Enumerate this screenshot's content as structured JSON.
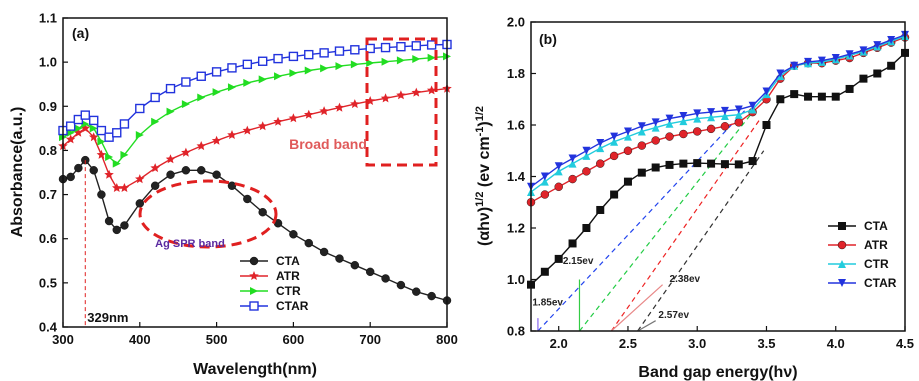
{
  "chart_data": [
    {
      "type": "line",
      "panel_label": "(a)",
      "xlabel": "Wavelength(nm)",
      "ylabel": "Absorbance(a.u.)",
      "xlim": [
        300,
        800
      ],
      "ylim": [
        0.4,
        1.1
      ],
      "xticks": [
        "300",
        "400",
        "500",
        "600",
        "700",
        "800"
      ],
      "yticks": [
        "0.4",
        "0.5",
        "0.6",
        "0.7",
        "0.8",
        "0.9",
        "1.0",
        "1.1"
      ],
      "grid": false,
      "legend_position": "bottom-right",
      "series": [
        {
          "name": "CTA",
          "color": "#222222",
          "marker": "sphere",
          "x": [
            300,
            310,
            320,
            329,
            340,
            350,
            360,
            370,
            380,
            400,
            420,
            440,
            460,
            480,
            500,
            520,
            540,
            560,
            580,
            600,
            620,
            640,
            660,
            680,
            700,
            720,
            740,
            760,
            780,
            800
          ],
          "y": [
            0.735,
            0.74,
            0.76,
            0.778,
            0.755,
            0.7,
            0.64,
            0.62,
            0.63,
            0.68,
            0.72,
            0.745,
            0.755,
            0.755,
            0.745,
            0.72,
            0.69,
            0.66,
            0.635,
            0.61,
            0.59,
            0.57,
            0.555,
            0.54,
            0.525,
            0.51,
            0.495,
            0.48,
            0.47,
            0.46
          ]
        },
        {
          "name": "ATR",
          "color": "#e0242a",
          "marker": "star",
          "x": [
            300,
            310,
            320,
            329,
            340,
            350,
            360,
            370,
            380,
            400,
            420,
            440,
            460,
            480,
            500,
            520,
            540,
            560,
            580,
            600,
            620,
            640,
            660,
            680,
            700,
            720,
            740,
            760,
            780,
            800
          ],
          "y": [
            0.81,
            0.825,
            0.84,
            0.85,
            0.83,
            0.79,
            0.745,
            0.715,
            0.715,
            0.735,
            0.76,
            0.78,
            0.795,
            0.81,
            0.822,
            0.835,
            0.845,
            0.855,
            0.865,
            0.873,
            0.881,
            0.889,
            0.897,
            0.905,
            0.912,
            0.918,
            0.925,
            0.931,
            0.936,
            0.94
          ]
        },
        {
          "name": "CTR",
          "color": "#22dd22",
          "marker": "triangle-right",
          "x": [
            300,
            310,
            320,
            329,
            340,
            350,
            360,
            370,
            380,
            400,
            420,
            440,
            460,
            480,
            500,
            520,
            540,
            560,
            580,
            600,
            620,
            640,
            660,
            680,
            700,
            720,
            740,
            760,
            780,
            800
          ],
          "y": [
            0.83,
            0.84,
            0.85,
            0.86,
            0.85,
            0.82,
            0.785,
            0.77,
            0.79,
            0.835,
            0.865,
            0.888,
            0.905,
            0.92,
            0.932,
            0.943,
            0.953,
            0.961,
            0.968,
            0.975,
            0.981,
            0.986,
            0.991,
            0.995,
            0.998,
            1.001,
            1.004,
            1.007,
            1.01,
            1.013
          ]
        },
        {
          "name": "CTAR",
          "color": "#2233dd",
          "marker": "square-open",
          "x": [
            300,
            310,
            320,
            329,
            340,
            350,
            360,
            370,
            380,
            400,
            420,
            440,
            460,
            480,
            500,
            520,
            540,
            560,
            580,
            600,
            620,
            640,
            660,
            680,
            700,
            720,
            740,
            760,
            780,
            800
          ],
          "y": [
            0.845,
            0.855,
            0.87,
            0.88,
            0.868,
            0.845,
            0.83,
            0.84,
            0.86,
            0.895,
            0.92,
            0.94,
            0.955,
            0.968,
            0.978,
            0.987,
            0.995,
            1.002,
            1.008,
            1.013,
            1.017,
            1.021,
            1.025,
            1.028,
            1.031,
            1.033,
            1.035,
            1.037,
            1.039,
            1.04
          ]
        }
      ],
      "annotations": {
        "peak_label": "329nm",
        "peak_x": 329,
        "broad_band": "Broad band",
        "spr_band": "Ag SPR band"
      }
    },
    {
      "type": "line",
      "panel_label": "(b)",
      "xlabel": "Band gap energy(hν)",
      "ylabel": "(αhν)1/2 (ev cm-1)1/2",
      "ylabel_parts": {
        "a": "(αhν)",
        "b": "1/2",
        "c": " (ev cm",
        "d": "-1",
        "e": ")",
        "f": "1/2"
      },
      "xlim": [
        1.8,
        4.5
      ],
      "ylim": [
        0.8,
        2.0
      ],
      "xticks": [
        "2.0",
        "2.5",
        "3.0",
        "3.5",
        "4.0",
        "4.5"
      ],
      "yticks": [
        "0.8",
        "1.0",
        "1.2",
        "1.4",
        "1.6",
        "1.8",
        "2.0"
      ],
      "grid": false,
      "legend_position": "center-right",
      "series": [
        {
          "name": "CTA",
          "color": "#111111",
          "marker": "square",
          "x": [
            1.8,
            1.9,
            2.0,
            2.1,
            2.2,
            2.3,
            2.4,
            2.5,
            2.6,
            2.7,
            2.8,
            2.9,
            3.0,
            3.1,
            3.2,
            3.3,
            3.4,
            3.5,
            3.6,
            3.7,
            3.8,
            3.9,
            4.0,
            4.1,
            4.2,
            4.3,
            4.4,
            4.5
          ],
          "y": [
            0.98,
            1.03,
            1.08,
            1.14,
            1.2,
            1.27,
            1.33,
            1.38,
            1.415,
            1.435,
            1.445,
            1.45,
            1.452,
            1.45,
            1.448,
            1.447,
            1.46,
            1.6,
            1.7,
            1.72,
            1.71,
            1.71,
            1.71,
            1.74,
            1.78,
            1.8,
            1.83,
            1.88
          ]
        },
        {
          "name": "ATR",
          "color": "#e0242a",
          "marker": "circle",
          "x": [
            1.8,
            1.9,
            2.0,
            2.1,
            2.2,
            2.3,
            2.4,
            2.5,
            2.6,
            2.7,
            2.8,
            2.9,
            3.0,
            3.1,
            3.2,
            3.3,
            3.4,
            3.5,
            3.6,
            3.7,
            3.8,
            3.9,
            4.0,
            4.1,
            4.2,
            4.3,
            4.4,
            4.5
          ],
          "y": [
            1.3,
            1.33,
            1.36,
            1.39,
            1.42,
            1.45,
            1.48,
            1.5,
            1.52,
            1.54,
            1.555,
            1.565,
            1.575,
            1.585,
            1.595,
            1.61,
            1.65,
            1.7,
            1.78,
            1.83,
            1.84,
            1.84,
            1.85,
            1.86,
            1.88,
            1.9,
            1.92,
            1.94
          ]
        },
        {
          "name": "CTR",
          "color": "#22ccdd",
          "marker": "triangle-up",
          "x": [
            1.8,
            1.9,
            2.0,
            2.1,
            2.2,
            2.3,
            2.4,
            2.5,
            2.6,
            2.7,
            2.8,
            2.9,
            3.0,
            3.1,
            3.2,
            3.3,
            3.4,
            3.5,
            3.6,
            3.7,
            3.8,
            3.9,
            4.0,
            4.1,
            4.2,
            4.3,
            4.4,
            4.5
          ],
          "y": [
            1.34,
            1.38,
            1.42,
            1.45,
            1.48,
            1.51,
            1.535,
            1.555,
            1.575,
            1.59,
            1.605,
            1.615,
            1.625,
            1.63,
            1.635,
            1.64,
            1.66,
            1.72,
            1.79,
            1.83,
            1.84,
            1.845,
            1.855,
            1.87,
            1.885,
            1.905,
            1.925,
            1.945
          ]
        },
        {
          "name": "CTAR",
          "color": "#2233dd",
          "marker": "triangle-down",
          "x": [
            1.8,
            1.9,
            2.0,
            2.1,
            2.2,
            2.3,
            2.4,
            2.5,
            2.6,
            2.7,
            2.8,
            2.9,
            3.0,
            3.1,
            3.2,
            3.3,
            3.4,
            3.5,
            3.6,
            3.7,
            3.8,
            3.9,
            4.0,
            4.1,
            4.2,
            4.3,
            4.4,
            4.5
          ],
          "y": [
            1.36,
            1.4,
            1.44,
            1.47,
            1.5,
            1.53,
            1.555,
            1.575,
            1.595,
            1.61,
            1.625,
            1.635,
            1.645,
            1.65,
            1.655,
            1.66,
            1.675,
            1.73,
            1.8,
            1.83,
            1.845,
            1.85,
            1.86,
            1.875,
            1.89,
            1.91,
            1.93,
            1.95
          ]
        }
      ],
      "tangent_lines": [
        {
          "color": "#2244ee",
          "x": [
            1.85,
            3.35
          ],
          "y": [
            0.8,
            1.66
          ]
        },
        {
          "color": "#22cc44",
          "x": [
            2.15,
            3.4
          ],
          "y": [
            0.8,
            1.65
          ]
        },
        {
          "color": "#ee2222",
          "x": [
            2.38,
            3.45
          ],
          "y": [
            0.8,
            1.62
          ]
        },
        {
          "color": "#333333",
          "x": [
            2.57,
            3.48
          ],
          "y": [
            0.8,
            1.5
          ]
        }
      ],
      "band_gap_labels": [
        "1.85ev",
        "2.15ev",
        "2.38ev",
        "2.57ev"
      ]
    }
  ]
}
